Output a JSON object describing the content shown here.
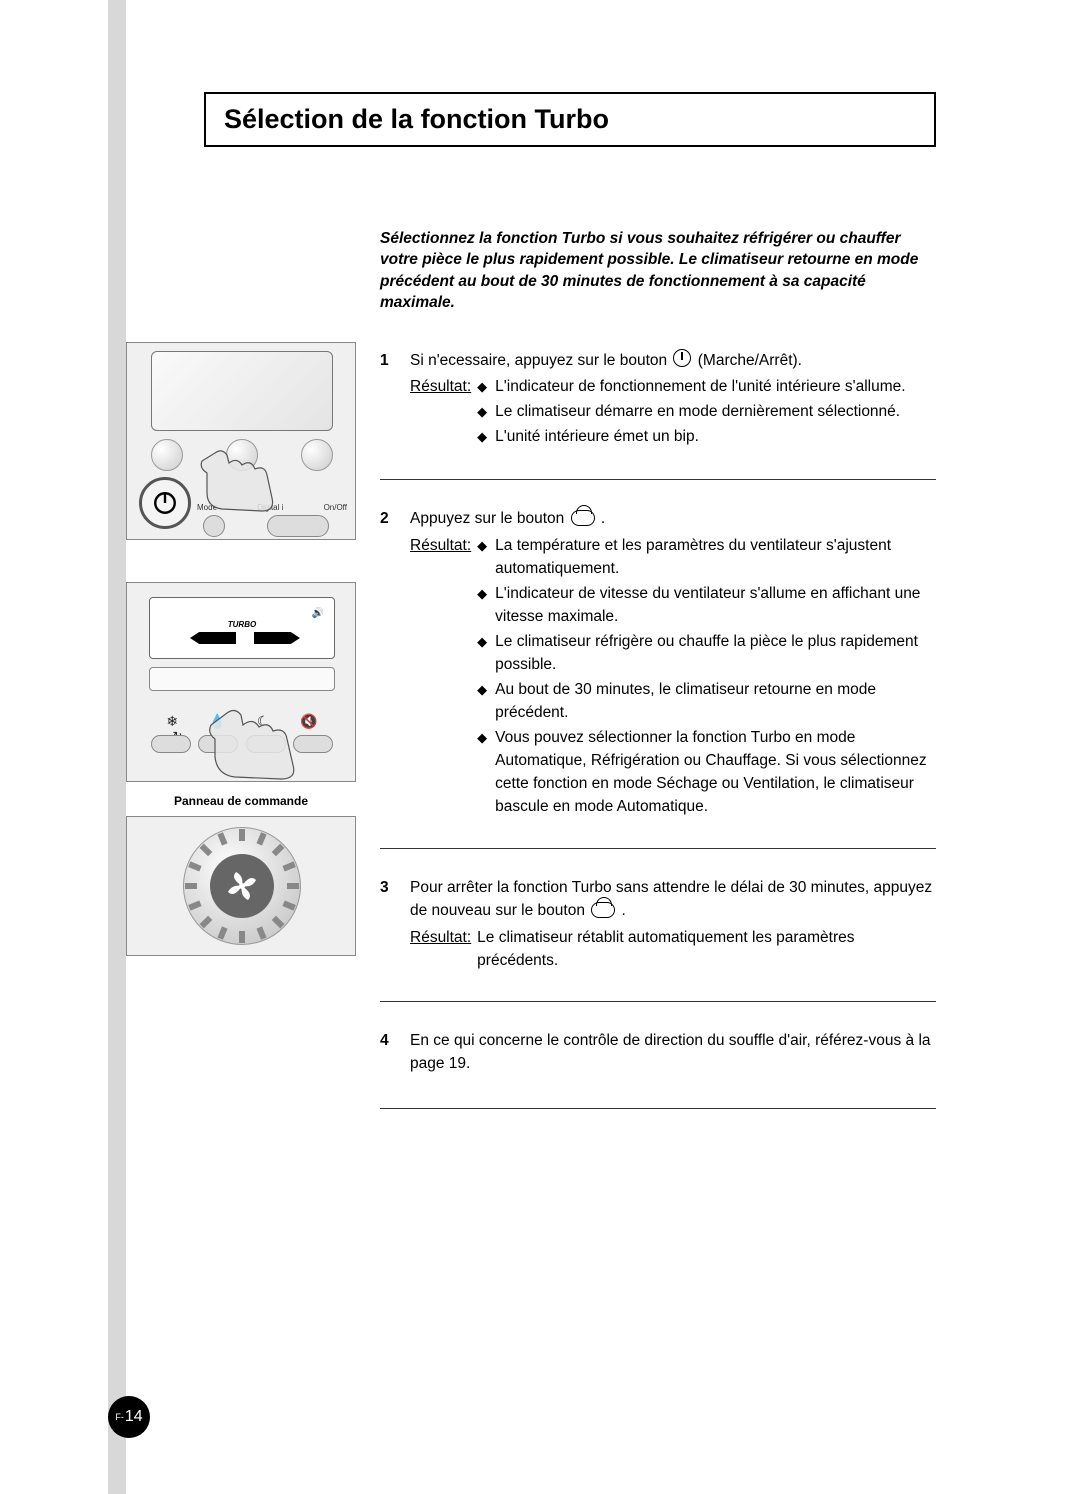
{
  "page": {
    "background_color": "#ffffff",
    "gray_bar_color": "#d8d8d8",
    "title": "Sélection de la fonction Turbo",
    "title_fontsize": 27,
    "page_prefix": "F-",
    "page_number": "14",
    "panel_caption": "Panneau de commande"
  },
  "intro": "Sélectionnez la fonction Turbo si vous souhaitez réfrigérer ou chauffer votre pièce le plus rapidement possible. Le climatiseur retourne en mode précédent au bout de 30 minutes de fonctionnement à sa capacité maximale.",
  "fig1": {
    "mode_label": "Mode",
    "digital_label": "Digital i",
    "onoff_label": "On/Off"
  },
  "fig2": {
    "turbo_label": "TURBO"
  },
  "steps": [
    {
      "num": "1",
      "line1_before": "Si n'ecessaire, appuyez sur le bouton ",
      "line1_icon": "power",
      "line1_after": " (Marche/Arrêt).",
      "result_label": "Résultat:",
      "result_style": "bullets",
      "bullets": [
        "L'indicateur de fonctionnement de l'unité intérieure s'allume.",
        "Le climatiseur démarre en mode dernièrement sélectionné.",
        "L'unité intérieure émet un bip."
      ]
    },
    {
      "num": "2",
      "line1_before": "Appuyez sur le bouton ",
      "line1_icon": "turbo",
      "line1_after": " .",
      "result_label": "Résultat:",
      "result_style": "bullets",
      "bullets": [
        "La température et les paramètres du ventilateur s'ajustent automatiquement.",
        "L'indicateur de vitesse du ventilateur s'allume en affichant une vitesse maximale.",
        "Le climatiseur réfrigère ou chauffe la pièce le plus rapidement possible.",
        "Au bout de 30 minutes, le climatiseur retourne en mode précédent.",
        "Vous pouvez sélectionner la fonction Turbo en mode Automatique, Réfrigération ou Chauffage. Si vous sélectionnez cette fonction en mode Séchage ou Ventilation, le climatiseur bascule en mode Automatique."
      ]
    },
    {
      "num": "3",
      "line1_before": "Pour arrêter la fonction Turbo sans attendre le délai de 30 minutes, appuyez de nouveau sur le bouton ",
      "line1_icon": "turbo",
      "line1_after": " .",
      "result_label": "Résultat:",
      "result_style": "plain",
      "result_text": "Le climatiseur rétablit automatiquement les paramètres précédents."
    },
    {
      "num": "4",
      "line1_before": "En ce qui concerne le contrôle de direction du souffle d'air, référez-vous à la page 19.",
      "line1_icon": null,
      "line1_after": "",
      "result_label": null
    }
  ],
  "colors": {
    "text": "#000000",
    "border": "#000000",
    "fig_bg": "#f0f0f0",
    "fig_border": "#888888",
    "badge_bg": "#000000",
    "badge_text": "#ffffff",
    "rule": "#333333"
  },
  "typography": {
    "body_fontsize": 15.5,
    "caption_fontsize": 12,
    "font_family": "Arial, Helvetica, sans-serif"
  }
}
